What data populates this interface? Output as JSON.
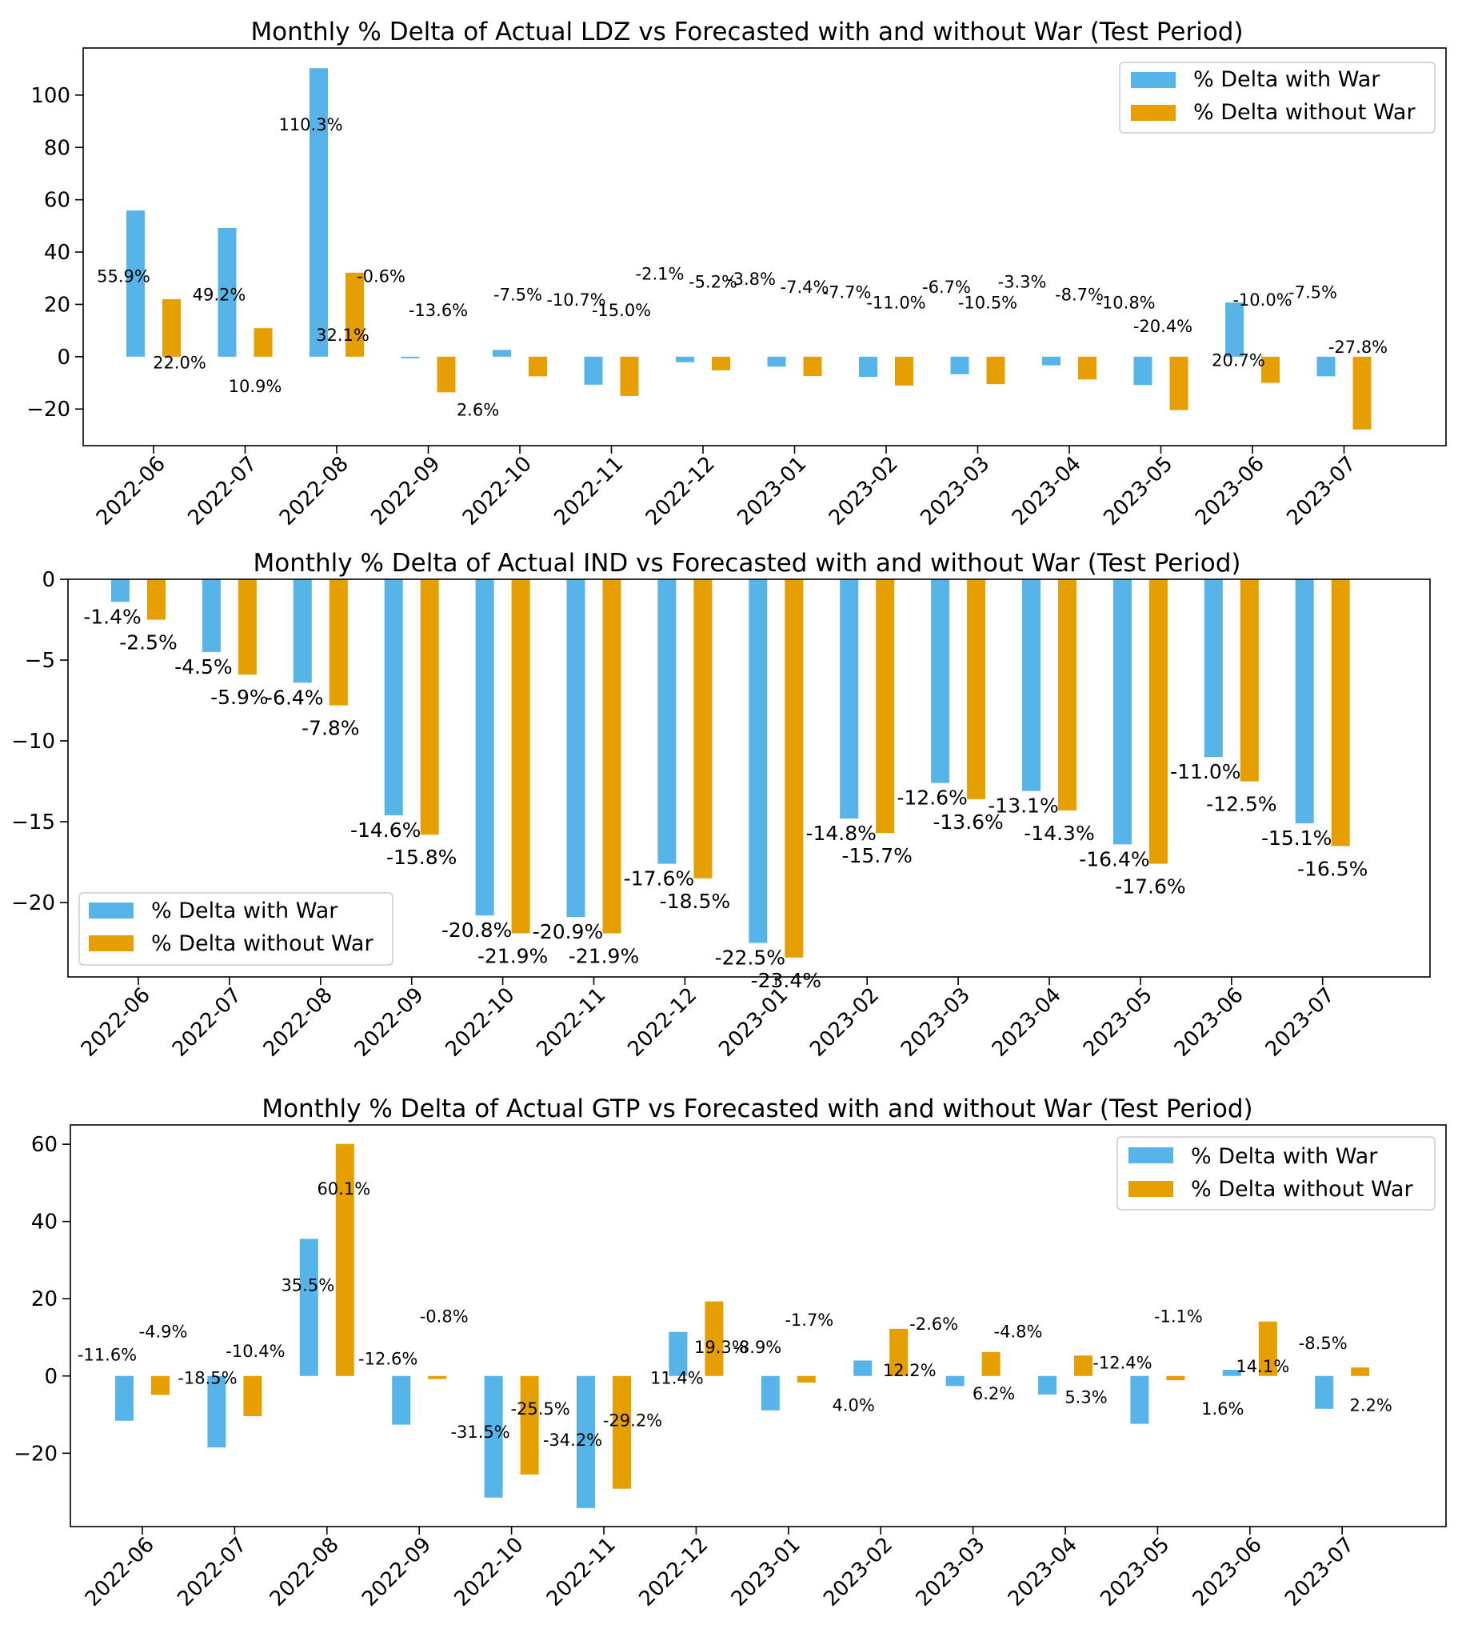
{
  "colors": {
    "with_war": "#56B4E9",
    "without_war": "#E69F00"
  },
  "legend_labels": {
    "with_war": "% Delta with War",
    "without_war": "% Delta without War"
  },
  "chart_data": [
    {
      "type": "bar",
      "title": "Monthly % Delta of Actual LDZ vs Forecasted with and without War (Test Period)",
      "categories": [
        "2022-06",
        "2022-07",
        "2022-08",
        "2022-09",
        "2022-10",
        "2022-11",
        "2022-12",
        "2023-01",
        "2023-02",
        "2023-03",
        "2023-04",
        "2023-05",
        "2023-06",
        "2023-07"
      ],
      "series": [
        {
          "name": "% Delta with War",
          "values": [
            55.9,
            49.2,
            110.3,
            -0.6,
            2.6,
            -10.7,
            -2.1,
            -3.8,
            -7.7,
            -6.7,
            -3.3,
            -10.8,
            20.7,
            -7.5
          ]
        },
        {
          "name": "% Delta without War",
          "values": [
            22.0,
            10.9,
            32.1,
            -13.6,
            -7.5,
            -15.0,
            -5.2,
            -7.4,
            -11.0,
            -10.5,
            -8.7,
            -20.4,
            -10.0,
            -27.8
          ]
        }
      ],
      "data_labels": {
        "with": [
          "55.9%",
          "49.2%",
          "110.3%",
          "-0.6%",
          "2.6%",
          "-10.7%",
          "-2.1%",
          "-3.8%",
          "-7.7%",
          "-6.7%",
          "-3.3%",
          "-10.8%",
          "20.7%",
          "-7.5%"
        ],
        "without": [
          "22.0%",
          "10.9%",
          "32.1%",
          "-13.6%",
          "-7.5%",
          "-15.0%",
          "-5.2%",
          "-7.4%",
          "-11.0%",
          "-10.5%",
          "-8.7%",
          "-20.4%",
          "-10.0%",
          "-27.8%"
        ]
      },
      "ylim": [
        -34,
        118
      ],
      "yticks": [
        -20,
        0,
        20,
        40,
        60,
        80,
        100
      ],
      "ytick_labels": [
        "−20",
        "0",
        "20",
        "40",
        "60",
        "80",
        "100"
      ],
      "legend": "top-right"
    },
    {
      "type": "bar",
      "title": "Monthly % Delta of Actual IND vs Forecasted with and without War (Test Period)",
      "categories": [
        "2022-06",
        "2022-07",
        "2022-08",
        "2022-09",
        "2022-10",
        "2022-11",
        "2022-12",
        "2023-01",
        "2023-02",
        "2023-03",
        "2023-04",
        "2023-05",
        "2023-06",
        "2023-07"
      ],
      "series": [
        {
          "name": "% Delta with War",
          "values": [
            -1.4,
            -4.5,
            -6.4,
            -14.6,
            -20.8,
            -20.9,
            -17.6,
            -22.5,
            -14.8,
            -12.6,
            -13.1,
            -16.4,
            -11.0,
            -15.1
          ]
        },
        {
          "name": "% Delta without War",
          "values": [
            -2.5,
            -5.9,
            -7.8,
            -15.8,
            -21.9,
            -21.9,
            -18.5,
            -23.4,
            -15.7,
            -13.6,
            -14.3,
            -17.6,
            -12.5,
            -16.5
          ]
        }
      ],
      "data_labels": {
        "with": [
          "-1.4%",
          "-4.5%",
          "-6.4%",
          "-14.6%",
          "-20.8%",
          "-20.9%",
          "-17.6%",
          "-22.5%",
          "-14.8%",
          "-12.6%",
          "-13.1%",
          "-16.4%",
          "-11.0%",
          "-15.1%"
        ],
        "without": [
          "-2.5%",
          "-5.9%",
          "-7.8%",
          "-15.8%",
          "-21.9%",
          "-21.9%",
          "-18.5%",
          "-23.4%",
          "-15.7%",
          "-13.6%",
          "-14.3%",
          "-17.6%",
          "-12.5%",
          "-16.5%"
        ]
      },
      "ylim": [
        -24.6,
        0
      ],
      "yticks": [
        -20,
        -15,
        -10,
        -5,
        0
      ],
      "ytick_labels": [
        "−20",
        "−15",
        "−10",
        "−5",
        "0"
      ],
      "legend": "bottom-left"
    },
    {
      "type": "bar",
      "title": "Monthly % Delta of Actual GTP vs Forecasted with and without War (Test Period)",
      "categories": [
        "2022-06",
        "2022-07",
        "2022-08",
        "2022-09",
        "2022-10",
        "2022-11",
        "2022-12",
        "2023-01",
        "2023-02",
        "2023-03",
        "2023-04",
        "2023-05",
        "2023-06",
        "2023-07"
      ],
      "series": [
        {
          "name": "% Delta with War",
          "values": [
            -11.6,
            -18.5,
            35.5,
            -12.6,
            -31.5,
            -34.2,
            11.4,
            -8.9,
            4.0,
            -2.6,
            -4.8,
            -12.4,
            1.6,
            -8.5
          ]
        },
        {
          "name": "% Delta without War",
          "values": [
            -4.9,
            -10.4,
            60.1,
            -0.8,
            -25.5,
            -29.2,
            19.3,
            -1.7,
            12.2,
            6.2,
            5.3,
            -1.1,
            14.1,
            2.2
          ]
        }
      ],
      "data_labels": {
        "with": [
          "-11.6%",
          "-18.5%",
          "35.5%",
          "-12.6%",
          "-31.5%",
          "-34.2%",
          "11.4%",
          "-8.9%",
          "4.0%",
          "-2.6%",
          "-4.8%",
          "-12.4%",
          "1.6%",
          "-8.5%"
        ],
        "without": [
          "-4.9%",
          "-10.4%",
          "60.1%",
          "-0.8%",
          "-25.5%",
          "-29.2%",
          "19.3%",
          "-1.7%",
          "12.2%",
          "6.2%",
          "5.3%",
          "-1.1%",
          "14.1%",
          "2.2%"
        ]
      },
      "ylim": [
        -39,
        65
      ],
      "yticks": [
        -20,
        0,
        20,
        40,
        60
      ],
      "ytick_labels": [
        "−20",
        "0",
        "20",
        "40",
        "60"
      ],
      "legend": "top-right"
    }
  ]
}
